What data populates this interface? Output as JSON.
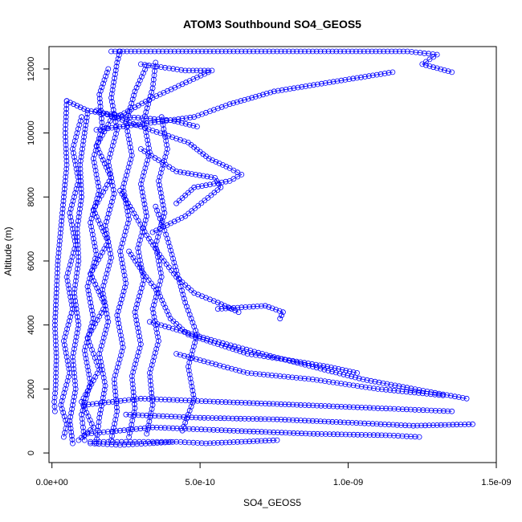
{
  "chart_data": {
    "type": "scatter",
    "title": "ATOM3 Southbound SO4_GEOS5",
    "xlabel": "SO4_GEOS5",
    "ylabel": "Altitude (m)",
    "xlim": [
      -1e-11,
      1.5e-09
    ],
    "ylim": [
      -300,
      12700
    ],
    "x_ticks": [
      0,
      5e-10,
      1e-09,
      1.5e-09
    ],
    "x_tick_labels": [
      "0.0e+00",
      "5.0e-10",
      "1.0e-09",
      "1.5e-09"
    ],
    "y_ticks": [
      0,
      2000,
      4000,
      6000,
      8000,
      10000,
      12000
    ],
    "y_tick_labels": [
      "0",
      "2000",
      "4000",
      "6000",
      "8000",
      "10000",
      "12000"
    ],
    "grid": false,
    "marker": "open-circle",
    "color": "#0000ff",
    "series": [
      {
        "values": [
          [
            2e-10,
            12550
          ],
          [
            4e-10,
            12550
          ],
          [
            8e-10,
            12550
          ],
          [
            1.2e-09,
            12550
          ],
          [
            1.3e-09,
            12450
          ],
          [
            1.25e-09,
            12150
          ],
          [
            1.35e-09,
            11900
          ]
        ]
      },
      {
        "values": [
          [
            1.15e-09,
            11900
          ],
          [
            9.5e-10,
            11600
          ],
          [
            7.5e-10,
            11300
          ],
          [
            6e-10,
            10900
          ],
          [
            4.8e-10,
            10500
          ],
          [
            3.2e-10,
            10300
          ],
          [
            1.5e-10,
            10100
          ]
        ]
      },
      {
        "values": [
          [
            3e-10,
            12150
          ],
          [
            4.5e-10,
            11950
          ],
          [
            5.4e-10,
            11950
          ],
          [
            3.4e-10,
            11100
          ],
          [
            2.2e-10,
            10500
          ]
        ]
      },
      {
        "values": [
          [
            5e-11,
            11000
          ],
          [
            1.2e-10,
            10700
          ],
          [
            2.5e-10,
            10500
          ],
          [
            4e-10,
            10400
          ],
          [
            4.9e-10,
            10200
          ]
        ]
      },
      {
        "values": [
          [
            1.5e-10,
            10700
          ],
          [
            3e-10,
            10200
          ],
          [
            4.6e-10,
            9700
          ],
          [
            5.3e-10,
            9200
          ],
          [
            6e-10,
            8900
          ],
          [
            6.4e-10,
            8700
          ],
          [
            6e-10,
            8500
          ],
          [
            4.8e-10,
            8300
          ],
          [
            4.2e-10,
            7800
          ]
        ]
      },
      {
        "values": [
          [
            3e-10,
            9500
          ],
          [
            4.2e-10,
            8800
          ],
          [
            5.5e-10,
            8600
          ],
          [
            5.7e-10,
            8300
          ],
          [
            4.5e-10,
            7400
          ],
          [
            3.4e-10,
            6900
          ]
        ]
      },
      {
        "values": [
          [
            2.3e-10,
            8200
          ],
          [
            2.7e-10,
            7600
          ],
          [
            3.2e-10,
            6800
          ],
          [
            3.7e-10,
            6100
          ],
          [
            4.2e-10,
            5500
          ],
          [
            4.8e-10,
            5000
          ],
          [
            5.6e-10,
            4700
          ],
          [
            6.3e-10,
            4400
          ]
        ]
      },
      {
        "values": [
          [
            5.6e-10,
            4500
          ],
          [
            7.2e-10,
            4600
          ],
          [
            7.8e-10,
            4400
          ],
          [
            7.7e-10,
            4200
          ]
        ]
      },
      {
        "values": [
          [
            2.6e-10,
            6300
          ],
          [
            3.1e-10,
            5600
          ],
          [
            3.6e-10,
            5000
          ],
          [
            4e-10,
            4200
          ],
          [
            4.6e-10,
            3700
          ],
          [
            5.6e-10,
            3400
          ],
          [
            6.6e-10,
            3100
          ],
          [
            8e-10,
            2900
          ],
          [
            9.3e-10,
            2700
          ],
          [
            1.03e-09,
            2500
          ]
        ]
      },
      {
        "values": [
          [
            3.3e-10,
            4100
          ],
          [
            5.5e-10,
            3500
          ],
          [
            7.5e-10,
            3000
          ],
          [
            1.05e-09,
            2300
          ],
          [
            1.28e-09,
            1900
          ],
          [
            1.4e-09,
            1700
          ]
        ]
      },
      {
        "values": [
          [
            4.2e-10,
            3100
          ],
          [
            6.6e-10,
            2500
          ],
          [
            8.8e-10,
            2300
          ],
          [
            1.1e-09,
            2000
          ],
          [
            1.32e-09,
            1800
          ]
        ]
      },
      {
        "values": [
          [
            1.1e-10,
            1500
          ],
          [
            3e-10,
            1700
          ],
          [
            5.6e-10,
            1600
          ],
          [
            8.4e-10,
            1500
          ],
          [
            1.1e-09,
            1400
          ],
          [
            1.35e-09,
            1300
          ]
        ]
      },
      {
        "values": [
          [
            2.5e-10,
            1200
          ],
          [
            5e-10,
            1100
          ],
          [
            7.6e-10,
            1050
          ],
          [
            1e-09,
            950
          ],
          [
            1.22e-09,
            850
          ],
          [
            1.42e-09,
            900
          ]
        ]
      },
      {
        "values": [
          [
            1.2e-10,
            600
          ],
          [
            3.4e-10,
            800
          ],
          [
            6e-10,
            700
          ],
          [
            8.7e-10,
            600
          ],
          [
            1.14e-09,
            550
          ],
          [
            1.24e-09,
            500
          ]
        ]
      },
      {
        "values": [
          [
            1.3e-10,
            300
          ],
          [
            2.3e-10,
            250
          ],
          [
            3.3e-10,
            300
          ],
          [
            4.2e-10,
            350
          ],
          [
            5.2e-10,
            300
          ],
          [
            6.4e-10,
            350
          ],
          [
            7.6e-10,
            400
          ]
        ]
      },
      {
        "values": [
          [
            1.3e-10,
            350
          ],
          [
            1.6e-10,
            350
          ],
          [
            2.2e-10,
            350
          ],
          [
            2.8e-10,
            350
          ],
          [
            3.4e-10,
            350
          ],
          [
            4e-10,
            350
          ]
        ]
      },
      {
        "values": [
          [
            1e-11,
            1300
          ],
          [
            8e-12,
            1600
          ],
          [
            1.2e-11,
            2000
          ],
          [
            1.5e-11,
            3000
          ],
          [
            1e-11,
            4000
          ],
          [
            1.5e-11,
            5000
          ],
          [
            2e-11,
            6000
          ],
          [
            3e-11,
            7000
          ],
          [
            4e-11,
            8000
          ],
          [
            5e-11,
            9000
          ],
          [
            4.5e-11,
            10000
          ],
          [
            5e-11,
            11000
          ]
        ]
      },
      {
        "values": [
          [
            7e-11,
            300
          ],
          [
            6e-11,
            1000
          ],
          [
            8e-11,
            2000
          ],
          [
            7e-11,
            3000
          ],
          [
            9e-11,
            4000
          ],
          [
            7.5e-11,
            5000
          ],
          [
            9e-11,
            6000
          ],
          [
            8.5e-11,
            7000
          ],
          [
            1e-10,
            8000
          ],
          [
            9.5e-11,
            9000
          ],
          [
            1.1e-10,
            10000
          ],
          [
            1.2e-10,
            10600
          ]
        ]
      },
      {
        "values": [
          [
            1.1e-10,
            400
          ],
          [
            1e-10,
            1200
          ],
          [
            1.3e-10,
            2200
          ],
          [
            1.1e-10,
            3200
          ],
          [
            1.4e-10,
            4200
          ],
          [
            1.2e-10,
            5200
          ],
          [
            1.5e-10,
            6200
          ],
          [
            1.3e-10,
            7200
          ],
          [
            1.6e-10,
            8200
          ],
          [
            1.4e-10,
            9200
          ],
          [
            1.7e-10,
            10200
          ],
          [
            1.6e-10,
            11200
          ],
          [
            1.9e-10,
            12000
          ]
        ]
      },
      {
        "values": [
          [
            1.5e-10,
            300
          ],
          [
            1.6e-10,
            1100
          ],
          [
            1.8e-10,
            2100
          ],
          [
            1.6e-10,
            3100
          ],
          [
            1.9e-10,
            4100
          ],
          [
            1.7e-10,
            5100
          ],
          [
            2e-10,
            6100
          ],
          [
            1.8e-10,
            7100
          ],
          [
            2.1e-10,
            8100
          ],
          [
            1.9e-10,
            9100
          ],
          [
            2.2e-10,
            10100
          ],
          [
            2e-10,
            11100
          ],
          [
            2.2e-10,
            12200
          ],
          [
            2.3e-10,
            12550
          ]
        ]
      },
      {
        "values": [
          [
            2e-10,
            400
          ],
          [
            2.2e-10,
            1300
          ],
          [
            2.1e-10,
            2300
          ],
          [
            2.4e-10,
            3300
          ],
          [
            2.2e-10,
            4300
          ],
          [
            2.5e-10,
            5300
          ],
          [
            2.3e-10,
            6300
          ],
          [
            2.6e-10,
            7300
          ],
          [
            2.4e-10,
            8300
          ],
          [
            2.7e-10,
            9300
          ],
          [
            2.5e-10,
            10300
          ],
          [
            2.8e-10,
            11300
          ],
          [
            3.2e-10,
            12100
          ]
        ]
      },
      {
        "values": [
          [
            2.6e-10,
            500
          ],
          [
            2.8e-10,
            1400
          ],
          [
            2.7e-10,
            2400
          ],
          [
            3e-10,
            3400
          ],
          [
            2.8e-10,
            4400
          ],
          [
            3.1e-10,
            5400
          ],
          [
            2.9e-10,
            6400
          ],
          [
            3.2e-10,
            7400
          ],
          [
            3e-10,
            8400
          ],
          [
            3.3e-10,
            9400
          ],
          [
            3.1e-10,
            10400
          ],
          [
            3.4e-10,
            11400
          ],
          [
            3.5e-10,
            12200
          ]
        ]
      },
      {
        "values": [
          [
            3.2e-10,
            600
          ],
          [
            3.4e-10,
            1500
          ],
          [
            3.3e-10,
            2500
          ],
          [
            3.6e-10,
            3500
          ],
          [
            3.4e-10,
            4500
          ],
          [
            3.7e-10,
            5500
          ],
          [
            3.5e-10,
            6500
          ],
          [
            3.8e-10,
            7500
          ],
          [
            3.6e-10,
            8500
          ],
          [
            3.9e-10,
            9500
          ],
          [
            3.7e-10,
            10500
          ]
        ]
      },
      {
        "values": [
          [
            4e-11,
            500
          ],
          [
            5e-11,
            900
          ],
          [
            3e-11,
            1500
          ],
          [
            6e-11,
            2500
          ],
          [
            4e-11,
            3500
          ],
          [
            7e-11,
            4500
          ],
          [
            5e-11,
            5500
          ],
          [
            8e-11,
            6500
          ],
          [
            6e-11,
            7500
          ],
          [
            9e-11,
            8500
          ],
          [
            7e-11,
            9500
          ],
          [
            1e-10,
            10500
          ]
        ]
      },
      {
        "values": [
          [
            9e-11,
            400
          ],
          [
            1.4e-10,
            800
          ],
          [
            1e-10,
            1600
          ],
          [
            1.6e-10,
            2600
          ],
          [
            1.2e-10,
            3600
          ],
          [
            1.8e-10,
            4600
          ],
          [
            1.3e-10,
            5600
          ],
          [
            1.9e-10,
            6600
          ],
          [
            1.4e-10,
            7600
          ],
          [
            2e-10,
            8600
          ],
          [
            1.5e-10,
            9600
          ],
          [
            2.1e-10,
            10600
          ]
        ]
      },
      {
        "values": [
          [
            4.4e-10,
            700
          ],
          [
            4.8e-10,
            1700
          ],
          [
            4.6e-10,
            2700
          ],
          [
            4.9e-10,
            3700
          ],
          [
            4.5e-10,
            4700
          ],
          [
            4.2e-10,
            5700
          ],
          [
            3.9e-10,
            6700
          ],
          [
            3.5e-10,
            7700
          ]
        ]
      }
    ]
  }
}
